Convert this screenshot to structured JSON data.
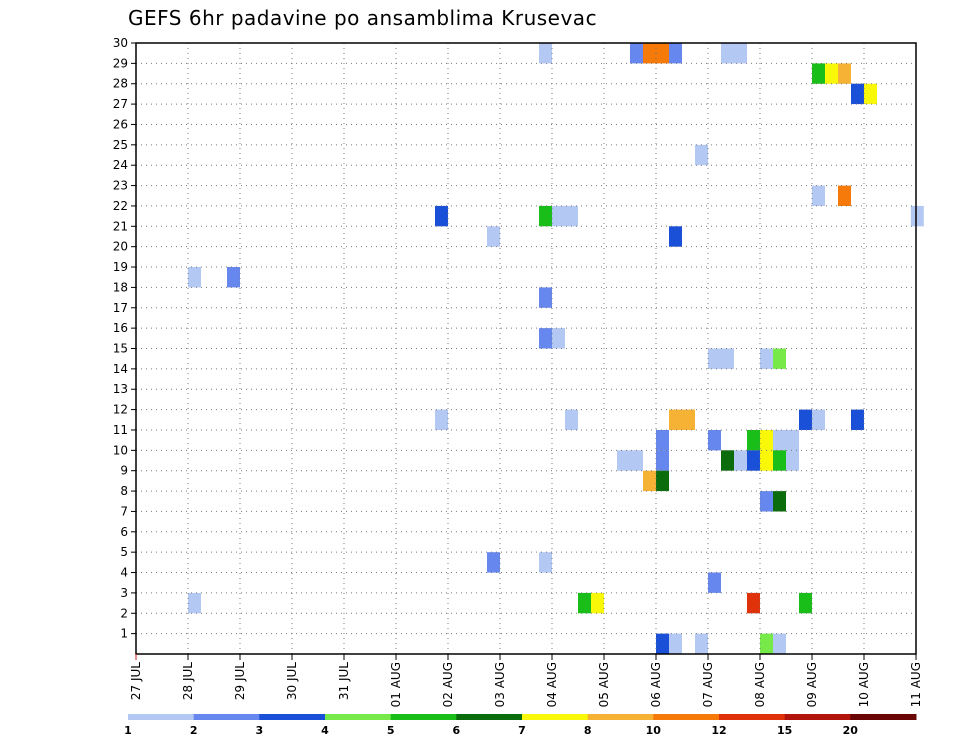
{
  "chart_data": {
    "type": "heatmap",
    "title": "GEFS 6hr padavine po ansamblima Krusevac",
    "xlabel": "",
    "ylabel": "",
    "x_ticks": [
      "27 JUL",
      "28 JUL",
      "29 JUL",
      "30 JUL",
      "31 JUL",
      "01 AUG",
      "02 AUG",
      "03 AUG",
      "04 AUG",
      "05 AUG",
      "06 AUG",
      "07 AUG",
      "08 AUG",
      "09 AUG",
      "10 AUG",
      "11 AUG"
    ],
    "x_range_days": [
      0,
      15
    ],
    "y_ticks": [
      "1",
      "2",
      "3",
      "4",
      "5",
      "6",
      "7",
      "8",
      "9",
      "10",
      "11",
      "12",
      "13",
      "14",
      "15",
      "16",
      "17",
      "18",
      "19",
      "20",
      "21",
      "22",
      "23",
      "24",
      "25",
      "26",
      "27",
      "28",
      "29",
      "30"
    ],
    "y_range": [
      0,
      30
    ],
    "grid": true,
    "grid_style": "dotted",
    "colorbar": {
      "labels": [
        "1",
        "2",
        "3",
        "4",
        "5",
        "6",
        "7",
        "8",
        "10",
        "12",
        "15",
        "20"
      ],
      "colors": [
        "#b4c8f4",
        "#6688ee",
        "#1a4fd8",
        "#77ea4a",
        "#19bf18",
        "#0a6c0a",
        "#f8f808",
        "#f6b234",
        "#f57a0a",
        "#e0320a",
        "#b0140a",
        "#6a0505"
      ]
    },
    "cells": [
      {
        "d": 7.75,
        "m": 30,
        "c": 1
      },
      {
        "d": 9.5,
        "m": 30,
        "c": 2
      },
      {
        "d": 9.75,
        "m": 30,
        "c": 9
      },
      {
        "d": 10.0,
        "m": 30,
        "c": 9
      },
      {
        "d": 10.25,
        "m": 30,
        "c": 2
      },
      {
        "d": 11.25,
        "m": 30,
        "c": 1
      },
      {
        "d": 11.5,
        "m": 30,
        "c": 1
      },
      {
        "d": 13.0,
        "m": 29,
        "c": 5
      },
      {
        "d": 13.25,
        "m": 29,
        "c": 7
      },
      {
        "d": 13.5,
        "m": 29,
        "c": 8
      },
      {
        "d": 13.75,
        "m": 28,
        "c": 3
      },
      {
        "d": 14.0,
        "m": 28,
        "c": 7
      },
      {
        "d": 10.75,
        "m": 25,
        "c": 1
      },
      {
        "d": 13.0,
        "m": 23,
        "c": 1
      },
      {
        "d": 13.5,
        "m": 23,
        "c": 9
      },
      {
        "d": 5.75,
        "m": 22,
        "c": 3
      },
      {
        "d": 7.75,
        "m": 22,
        "c": 5
      },
      {
        "d": 8.0,
        "m": 22,
        "c": 1
      },
      {
        "d": 8.25,
        "m": 22,
        "c": 1
      },
      {
        "d": 14.9,
        "m": 22,
        "c": 1
      },
      {
        "d": 6.75,
        "m": 21,
        "c": 1
      },
      {
        "d": 10.25,
        "m": 21,
        "c": 3
      },
      {
        "d": 1.0,
        "m": 19,
        "c": 1
      },
      {
        "d": 1.75,
        "m": 19,
        "c": 2
      },
      {
        "d": 7.75,
        "m": 18,
        "c": 2
      },
      {
        "d": 7.75,
        "m": 16,
        "c": 2
      },
      {
        "d": 8.0,
        "m": 16,
        "c": 1
      },
      {
        "d": 11.0,
        "m": 15,
        "c": 1
      },
      {
        "d": 11.25,
        "m": 15,
        "c": 1
      },
      {
        "d": 12.0,
        "m": 15,
        "c": 1
      },
      {
        "d": 12.25,
        "m": 15,
        "c": 4
      },
      {
        "d": 5.75,
        "m": 12,
        "c": 1
      },
      {
        "d": 8.25,
        "m": 12,
        "c": 1
      },
      {
        "d": 10.25,
        "m": 12,
        "c": 8
      },
      {
        "d": 10.5,
        "m": 12,
        "c": 8
      },
      {
        "d": 12.75,
        "m": 12,
        "c": 3
      },
      {
        "d": 13.0,
        "m": 12,
        "c": 1
      },
      {
        "d": 13.75,
        "m": 12,
        "c": 3
      },
      {
        "d": 10.0,
        "m": 11,
        "c": 2
      },
      {
        "d": 11.0,
        "m": 11,
        "c": 2
      },
      {
        "d": 11.75,
        "m": 11,
        "c": 5
      },
      {
        "d": 12.0,
        "m": 11,
        "c": 7
      },
      {
        "d": 12.25,
        "m": 11,
        "c": 1
      },
      {
        "d": 12.5,
        "m": 11,
        "c": 1
      },
      {
        "d": 9.25,
        "m": 10,
        "c": 1
      },
      {
        "d": 9.5,
        "m": 10,
        "c": 1
      },
      {
        "d": 10.0,
        "m": 10,
        "c": 2
      },
      {
        "d": 11.25,
        "m": 10,
        "c": 6
      },
      {
        "d": 11.5,
        "m": 10,
        "c": 1
      },
      {
        "d": 11.75,
        "m": 10,
        "c": 3
      },
      {
        "d": 12.0,
        "m": 10,
        "c": 7
      },
      {
        "d": 12.25,
        "m": 10,
        "c": 5
      },
      {
        "d": 12.5,
        "m": 10,
        "c": 1
      },
      {
        "d": 9.75,
        "m": 9,
        "c": 8
      },
      {
        "d": 10.0,
        "m": 9,
        "c": 6
      },
      {
        "d": 12.0,
        "m": 8,
        "c": 2
      },
      {
        "d": 12.25,
        "m": 8,
        "c": 6
      },
      {
        "d": 6.75,
        "m": 5,
        "c": 2
      },
      {
        "d": 7.75,
        "m": 5,
        "c": 1
      },
      {
        "d": 11.0,
        "m": 4,
        "c": 2
      },
      {
        "d": 1.0,
        "m": 3,
        "c": 1
      },
      {
        "d": 8.5,
        "m": 3,
        "c": 5
      },
      {
        "d": 8.75,
        "m": 3,
        "c": 7
      },
      {
        "d": 11.75,
        "m": 3,
        "c": 10
      },
      {
        "d": 12.75,
        "m": 3,
        "c": 5
      },
      {
        "d": 10.0,
        "m": 1,
        "c": 3
      },
      {
        "d": 10.25,
        "m": 1,
        "c": 1
      },
      {
        "d": 10.75,
        "m": 1,
        "c": 1
      },
      {
        "d": 12.0,
        "m": 1,
        "c": 4
      },
      {
        "d": 12.25,
        "m": 1,
        "c": 1
      }
    ]
  }
}
